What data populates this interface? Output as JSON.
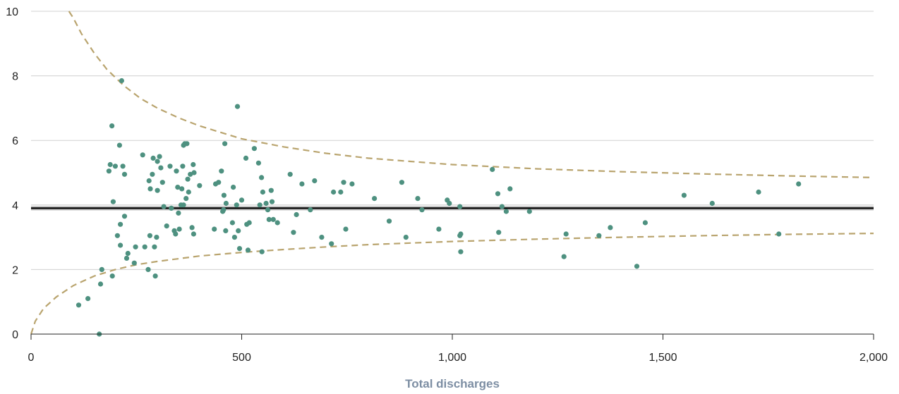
{
  "chart_data": {
    "type": "scatter",
    "title": "",
    "xlabel": "Total discharges",
    "ylabel": "",
    "xlim": [
      0,
      2000
    ],
    "ylim": [
      0,
      10
    ],
    "x_ticks": [
      0,
      500,
      1000,
      1500,
      2000
    ],
    "x_tick_labels": [
      "0",
      "500",
      "1,000",
      "1,500",
      "2,000"
    ],
    "y_ticks": [
      0,
      2,
      4,
      6,
      8,
      10
    ],
    "y_tick_labels": [
      "0",
      "2",
      "4",
      "6",
      "8",
      "10"
    ],
    "grid": "horizontal",
    "mean_line": 3.9,
    "control_limit_upper": [
      [
        90,
        10.0
      ],
      [
        100,
        9.8
      ],
      [
        120,
        9.3
      ],
      [
        150,
        8.7
      ],
      [
        180,
        8.2
      ],
      [
        220,
        7.7
      ],
      [
        260,
        7.3
      ],
      [
        300,
        7.0
      ],
      [
        350,
        6.7
      ],
      [
        400,
        6.45
      ],
      [
        450,
        6.25
      ],
      [
        500,
        6.05
      ],
      [
        600,
        5.8
      ],
      [
        700,
        5.6
      ],
      [
        800,
        5.45
      ],
      [
        900,
        5.35
      ],
      [
        1000,
        5.25
      ],
      [
        1200,
        5.12
      ],
      [
        1400,
        5.03
      ],
      [
        1600,
        4.96
      ],
      [
        1800,
        4.9
      ],
      [
        2000,
        4.85
      ]
    ],
    "control_limit_lower": [
      [
        0,
        0.0
      ],
      [
        10,
        0.4
      ],
      [
        30,
        0.8
      ],
      [
        60,
        1.15
      ],
      [
        100,
        1.5
      ],
      [
        150,
        1.8
      ],
      [
        200,
        2.0
      ],
      [
        250,
        2.15
      ],
      [
        300,
        2.25
      ],
      [
        400,
        2.42
      ],
      [
        500,
        2.53
      ],
      [
        600,
        2.62
      ],
      [
        700,
        2.7
      ],
      [
        800,
        2.77
      ],
      [
        900,
        2.82
      ],
      [
        1000,
        2.87
      ],
      [
        1200,
        2.94
      ],
      [
        1400,
        3.0
      ],
      [
        1600,
        3.05
      ],
      [
        1800,
        3.09
      ],
      [
        2000,
        3.12
      ]
    ],
    "colors": {
      "points": "#4e9180",
      "limits": "#b9a46e",
      "mean": "#000000",
      "grid": "#d0d0d0",
      "xlabel": "#7d8ea3"
    },
    "points": [
      [
        113,
        0.9
      ],
      [
        135,
        1.1
      ],
      [
        162,
        0.0
      ],
      [
        165,
        1.55
      ],
      [
        168,
        2.0
      ],
      [
        185,
        5.05
      ],
      [
        188,
        5.25
      ],
      [
        192,
        6.45
      ],
      [
        193,
        1.8
      ],
      [
        195,
        4.1
      ],
      [
        200,
        5.2
      ],
      [
        205,
        3.05
      ],
      [
        210,
        5.85
      ],
      [
        212,
        2.75
      ],
      [
        212,
        3.4
      ],
      [
        215,
        7.85
      ],
      [
        218,
        5.2
      ],
      [
        222,
        3.65
      ],
      [
        222,
        4.95
      ],
      [
        227,
        2.35
      ],
      [
        230,
        2.5
      ],
      [
        245,
        2.2
      ],
      [
        248,
        2.7
      ],
      [
        265,
        5.55
      ],
      [
        270,
        2.7
      ],
      [
        278,
        2.0
      ],
      [
        280,
        4.75
      ],
      [
        282,
        3.05
      ],
      [
        283,
        4.5
      ],
      [
        288,
        4.95
      ],
      [
        290,
        5.45
      ],
      [
        293,
        2.7
      ],
      [
        295,
        1.8
      ],
      [
        298,
        3.0
      ],
      [
        300,
        4.45
      ],
      [
        300,
        5.35
      ],
      [
        305,
        5.5
      ],
      [
        308,
        5.15
      ],
      [
        312,
        4.7
      ],
      [
        315,
        3.95
      ],
      [
        322,
        3.35
      ],
      [
        330,
        5.2
      ],
      [
        333,
        3.9
      ],
      [
        340,
        3.2
      ],
      [
        343,
        3.1
      ],
      [
        345,
        5.05
      ],
      [
        348,
        4.55
      ],
      [
        350,
        3.75
      ],
      [
        352,
        3.25
      ],
      [
        356,
        4.0
      ],
      [
        358,
        4.5
      ],
      [
        360,
        5.2
      ],
      [
        362,
        5.85
      ],
      [
        362,
        4.0
      ],
      [
        365,
        5.9
      ],
      [
        368,
        4.2
      ],
      [
        370,
        5.9
      ],
      [
        372,
        4.8
      ],
      [
        374,
        4.4
      ],
      [
        378,
        4.95
      ],
      [
        382,
        3.3
      ],
      [
        385,
        5.25
      ],
      [
        386,
        3.1
      ],
      [
        387,
        5.0
      ],
      [
        400,
        4.6
      ],
      [
        435,
        3.25
      ],
      [
        438,
        4.65
      ],
      [
        445,
        4.7
      ],
      [
        452,
        5.05
      ],
      [
        455,
        3.8
      ],
      [
        457,
        3.85
      ],
      [
        458,
        4.3
      ],
      [
        460,
        5.9
      ],
      [
        462,
        3.2
      ],
      [
        463,
        4.05
      ],
      [
        478,
        3.45
      ],
      [
        480,
        4.55
      ],
      [
        483,
        3.0
      ],
      [
        488,
        4.0
      ],
      [
        490,
        7.05
      ],
      [
        492,
        3.2
      ],
      [
        495,
        2.65
      ],
      [
        500,
        4.15
      ],
      [
        510,
        5.45
      ],
      [
        512,
        3.4
      ],
      [
        515,
        2.6
      ],
      [
        518,
        3.45
      ],
      [
        530,
        5.75
      ],
      [
        540,
        5.3
      ],
      [
        543,
        4.0
      ],
      [
        547,
        4.85
      ],
      [
        548,
        2.55
      ],
      [
        550,
        4.4
      ],
      [
        558,
        4.05
      ],
      [
        562,
        3.85
      ],
      [
        565,
        3.55
      ],
      [
        570,
        4.45
      ],
      [
        572,
        4.1
      ],
      [
        575,
        3.55
      ],
      [
        585,
        3.45
      ],
      [
        615,
        4.95
      ],
      [
        623,
        3.15
      ],
      [
        630,
        3.7
      ],
      [
        643,
        4.65
      ],
      [
        663,
        3.85
      ],
      [
        673,
        4.75
      ],
      [
        690,
        3.0
      ],
      [
        713,
        2.8
      ],
      [
        718,
        4.4
      ],
      [
        735,
        4.4
      ],
      [
        742,
        4.7
      ],
      [
        747,
        3.25
      ],
      [
        762,
        4.65
      ],
      [
        815,
        4.2
      ],
      [
        850,
        3.5
      ],
      [
        880,
        4.7
      ],
      [
        890,
        3.0
      ],
      [
        918,
        4.2
      ],
      [
        928,
        3.85
      ],
      [
        968,
        3.25
      ],
      [
        988,
        4.15
      ],
      [
        993,
        4.05
      ],
      [
        1018,
        3.95
      ],
      [
        1018,
        3.05
      ],
      [
        1020,
        3.1
      ],
      [
        1020,
        2.55
      ],
      [
        1095,
        5.1
      ],
      [
        1108,
        4.35
      ],
      [
        1110,
        3.15
      ],
      [
        1118,
        3.95
      ],
      [
        1128,
        3.8
      ],
      [
        1137,
        4.5
      ],
      [
        1183,
        3.8
      ],
      [
        1265,
        2.4
      ],
      [
        1270,
        3.1
      ],
      [
        1348,
        3.05
      ],
      [
        1375,
        3.3
      ],
      [
        1438,
        2.1
      ],
      [
        1458,
        3.45
      ],
      [
        1550,
        4.3
      ],
      [
        1617,
        4.05
      ],
      [
        1727,
        4.4
      ],
      [
        1775,
        3.1
      ],
      [
        1822,
        4.65
      ]
    ]
  }
}
